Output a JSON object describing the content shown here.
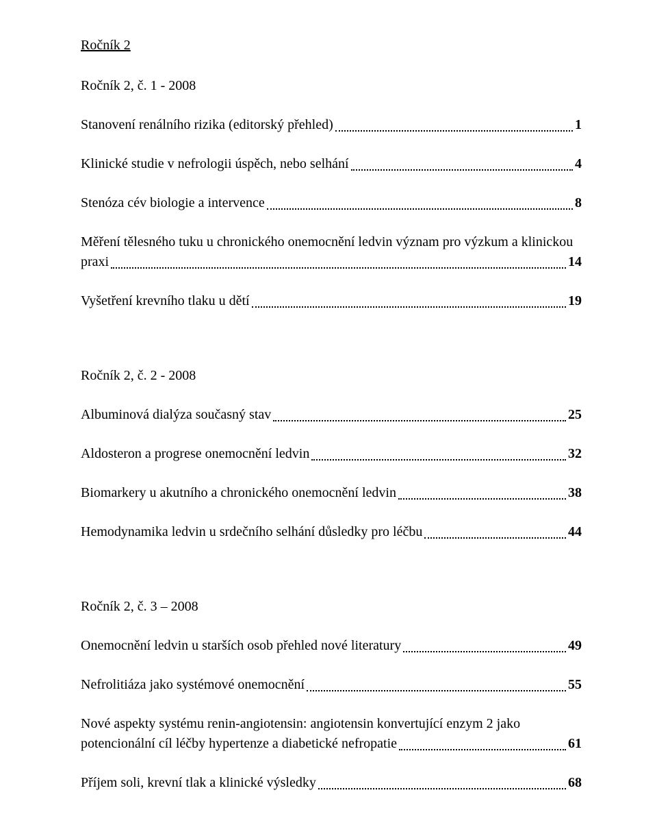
{
  "text_color": "#000000",
  "background_color": "#ffffff",
  "volume_title": "Ročník 2",
  "issues": [
    {
      "heading": "Ročník 2, č. 1 - 2008",
      "entries": [
        {
          "title": "Stanovení renálního rizika (editorský přehled)",
          "page": "1"
        },
        {
          "title": "Klinické studie v nefrologii úspěch, nebo selhání",
          "page": "4"
        },
        {
          "title": "Stenóza cév biologie a intervence",
          "page": "8"
        },
        {
          "title_line1": "Měření tělesného tuku u chronického onemocnění ledvin význam pro výzkum a klinickou",
          "title_line2": "praxi",
          "page": "14"
        },
        {
          "title": "Vyšetření krevního tlaku u dětí",
          "page": "19"
        }
      ]
    },
    {
      "heading": "Ročník 2, č. 2 - 2008",
      "entries": [
        {
          "title": "Albuminová dialýza současný stav",
          "page": "25"
        },
        {
          "title": "Aldosteron a progrese onemocnění ledvin",
          "page": "32"
        },
        {
          "title": "Biomarkery u akutního a chronického onemocnění ledvin",
          "page": "38"
        },
        {
          "title": "Hemodynamika ledvin u srdečního selhání důsledky pro léčbu",
          "page": "44"
        }
      ]
    },
    {
      "heading": "Ročník 2, č. 3 – 2008",
      "entries": [
        {
          "title": "Onemocnění ledvin u starších osob přehled nové literatury",
          "page": "49"
        },
        {
          "title": "Nefrolitiáza jako systémové onemocnění",
          "page": "55"
        },
        {
          "title_line1": "Nové aspekty systému renin-angiotensin: angiotensin konvertující enzym 2 jako",
          "title_line2": "potencionální cíl léčby hypertenze a diabetické nefropatie",
          "page": "61"
        },
        {
          "title": "Příjem soli, krevní tlak a klinické výsledky",
          "page": "68"
        }
      ]
    }
  ]
}
